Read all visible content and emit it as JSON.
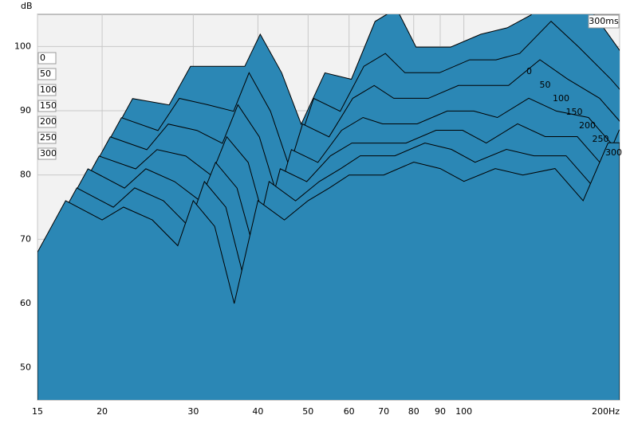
{
  "chart_data": {
    "type": "waterfall",
    "y_label": "dB",
    "time_label": "300ms",
    "x": [
      15,
      17,
      20,
      22,
      25,
      28,
      30,
      33,
      36,
      40,
      45,
      50,
      55,
      60,
      70,
      80,
      90,
      100,
      115,
      130,
      150,
      170,
      190,
      200
    ],
    "series": [
      {
        "name": "0",
        "color": "#2b87b5",
        "values": [
          72,
          80,
          79,
          85,
          85,
          85,
          90,
          84,
          76,
          84,
          83,
          92,
          94,
          88,
          88,
          90,
          91,
          93,
          99,
          94,
          87,
          82,
          85,
          85
        ]
      },
      {
        "name": "50",
        "color": "#2b87b5",
        "values": [
          71,
          79,
          77,
          82,
          81,
          80,
          86,
          80,
          71,
          82,
          80,
          87,
          89,
          86,
          86,
          88,
          88,
          89,
          94,
          90,
          85,
          80,
          85,
          85
        ]
      },
      {
        "name": "100",
        "color": "#2b87b5",
        "values": [
          70,
          78,
          76,
          80,
          79,
          77,
          83,
          78,
          68,
          80,
          78,
          84,
          86,
          84,
          84,
          86,
          86,
          86,
          90,
          87,
          84,
          79,
          85,
          85
        ]
      },
      {
        "name": "150",
        "color": "#2b87b5",
        "values": [
          69,
          77,
          75,
          78,
          77,
          74,
          80,
          76,
          65,
          78,
          76,
          81,
          83,
          82,
          82,
          84,
          84,
          83,
          86,
          84,
          83,
          78,
          85,
          85
        ]
      },
      {
        "name": "200",
        "color": "#2b87b5",
        "values": [
          69,
          77,
          74,
          77,
          75,
          72,
          78,
          74,
          63,
          77,
          75,
          79,
          81,
          81,
          81,
          83,
          83,
          81,
          84,
          82,
          82,
          77,
          85,
          85
        ]
      },
      {
        "name": "250",
        "color": "#2b87b5",
        "values": [
          68,
          76,
          73,
          76,
          74,
          70,
          77,
          73,
          61,
          77,
          74,
          77,
          79,
          81,
          81,
          83,
          82,
          80,
          82,
          81,
          81,
          76,
          85,
          85
        ]
      },
      {
        "name": "300",
        "color": "#2b87b5",
        "values": [
          68,
          76,
          73,
          75,
          73,
          69,
          76,
          72,
          60,
          76,
          73,
          76,
          78,
          80,
          80,
          82,
          81,
          79,
          81,
          80,
          81,
          76,
          85,
          85
        ]
      }
    ],
    "xlim": [
      15,
      200
    ],
    "log_x": true,
    "xticks": [
      15,
      20,
      30,
      40,
      50,
      60,
      70,
      80,
      90,
      100,
      {
        "value": 200,
        "label": "200Hz"
      }
    ],
    "ylim": [
      45,
      105
    ],
    "yticks": [
      50,
      60,
      70,
      80,
      90,
      100
    ],
    "grid": true
  }
}
